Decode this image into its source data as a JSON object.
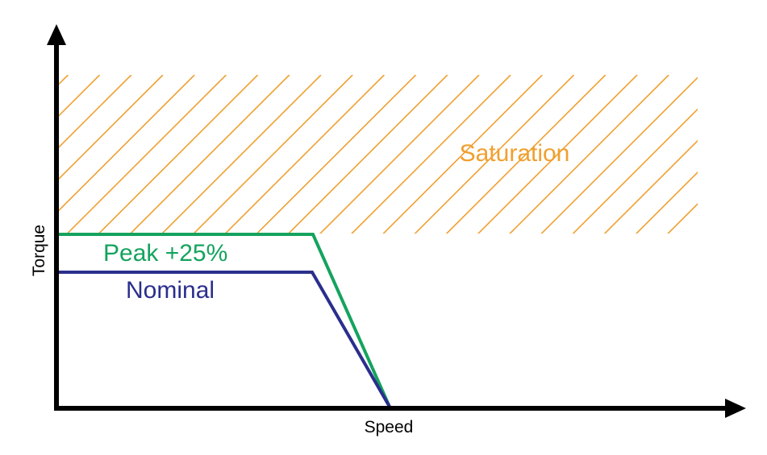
{
  "axes": {
    "x_label": "Speed",
    "y_label": "Torque"
  },
  "regions": {
    "saturation": {
      "label": "Saturation",
      "color": "#F0A030",
      "fill": "diagonal-hatch"
    }
  },
  "curves": {
    "peak": {
      "label": "Peak +25%",
      "color": "#14A35E"
    },
    "nominal": {
      "label": "Nominal",
      "color": "#2A2E8C"
    }
  },
  "colors": {
    "axis": "#000000"
  }
}
